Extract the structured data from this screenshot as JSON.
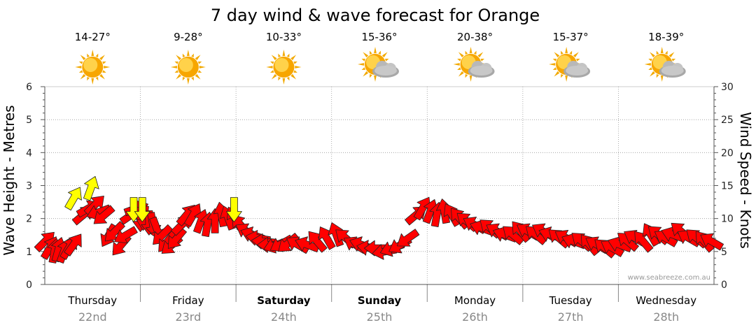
{
  "chart_data": {
    "type": "line",
    "title": "7 day wind & wave forecast for Orange",
    "ylabel_left": "Wave Height - Metres",
    "ylabel_right": "Wind Speed - Knots",
    "ylim_left": [
      0,
      6
    ],
    "ylim_right": [
      0,
      30
    ],
    "yticks_left": [
      "0",
      "1",
      "2",
      "3",
      "4",
      "5",
      "6"
    ],
    "yticks_right": [
      "0",
      "5",
      "10",
      "15",
      "20",
      "25",
      "30"
    ],
    "grid": true,
    "watermark": "www.seabreeze.com.au",
    "days": [
      {
        "day": "Thursday",
        "date": "22nd",
        "temp": "14-27°",
        "weather": "sunny-icon",
        "bold": false
      },
      {
        "day": "Friday",
        "date": "23rd",
        "temp": "9-28°",
        "weather": "sunny-icon",
        "bold": false
      },
      {
        "day": "Saturday",
        "date": "24th",
        "temp": "10-33°",
        "weather": "sunny-icon",
        "bold": true
      },
      {
        "day": "Sunday",
        "date": "25th",
        "temp": "15-36°",
        "weather": "partly-cloudy-icon",
        "bold": true
      },
      {
        "day": "Monday",
        "date": "26th",
        "temp": "20-38°",
        "weather": "partly-cloudy-icon",
        "bold": false
      },
      {
        "day": "Tuesday",
        "date": "27th",
        "temp": "15-37°",
        "weather": "partly-cloudy-icon",
        "bold": false
      },
      {
        "day": "Wednesday",
        "date": "28th",
        "temp": "18-39°",
        "weather": "partly-cloudy-icon",
        "bold": false
      }
    ],
    "colors": {
      "strong": "#ff0000",
      "light": "#ffff00",
      "outline": "#222222",
      "grid": "#999999",
      "date": "#888888"
    },
    "wind_series": {
      "name": "",
      "t": [
        0.0,
        0.05,
        0.1,
        0.14,
        0.2,
        0.25,
        0.3,
        0.4,
        0.45,
        0.52,
        0.57,
        0.62,
        0.67,
        0.73,
        0.8,
        0.85,
        0.9,
        0.95,
        1.0,
        1.04,
        1.09,
        1.13,
        1.17,
        1.23,
        1.28,
        1.33,
        1.38,
        1.43,
        1.48,
        1.55,
        1.63,
        1.7,
        1.78,
        1.85,
        1.92,
        1.99,
        2.05,
        2.12,
        2.18,
        2.24,
        2.3,
        2.36,
        2.42,
        2.48,
        2.55,
        2.65,
        2.75,
        2.85,
        2.95,
        3.05,
        3.15,
        3.25,
        3.32,
        3.4,
        3.48,
        3.56,
        3.64,
        3.72,
        3.8,
        3.88,
        3.95,
        4.03,
        4.1,
        4.18,
        4.26,
        4.34,
        4.42,
        4.5,
        4.58,
        4.66,
        4.74,
        4.82,
        4.9,
        4.98,
        5.06,
        5.14,
        5.22,
        5.3,
        5.38,
        5.46,
        5.54,
        5.62,
        5.7,
        5.78,
        5.86,
        5.94,
        6.02,
        6.1,
        6.18,
        6.26,
        6.34,
        6.42,
        6.5,
        6.58,
        6.66,
        6.74,
        6.82,
        6.9,
        6.98
      ],
      "knots": [
        6.5,
        5.5,
        5.0,
        5.2,
        5.0,
        5.5,
        6.0,
        10.5,
        11.5,
        12.0,
        11.0,
        10.5,
        7.5,
        8.0,
        6.0,
        7.5,
        10.5,
        11.5,
        10.0,
        10.2,
        9.5,
        9.2,
        8.5,
        7.5,
        6.5,
        6.0,
        7.0,
        9.0,
        10.5,
        10.5,
        9.5,
        9.0,
        9.5,
        10.5,
        10.0,
        10.0,
        9.0,
        8.0,
        7.5,
        7.0,
        6.5,
        6.0,
        6.0,
        6.2,
        6.3,
        6.0,
        6.0,
        6.5,
        7.0,
        7.5,
        7.0,
        6.0,
        6.0,
        5.5,
        5.5,
        5.0,
        5.5,
        6.0,
        7.0,
        10.5,
        11.5,
        11.0,
        10.5,
        11.0,
        10.5,
        10.0,
        9.5,
        9.0,
        8.5,
        8.5,
        8.0,
        7.5,
        7.5,
        8.0,
        8.0,
        7.5,
        8.0,
        7.5,
        7.0,
        7.0,
        6.5,
        6.5,
        6.0,
        6.0,
        5.5,
        5.5,
        6.0,
        6.5,
        7.0,
        6.5,
        7.5,
        7.5,
        7.0,
        7.5,
        8.0,
        7.0,
        7.0,
        6.5,
        6.5
      ],
      "direction_deg": [
        45,
        60,
        80,
        75,
        70,
        60,
        55,
        40,
        30,
        45,
        200,
        220,
        240,
        225,
        230,
        210,
        35,
        20,
        270,
        265,
        270,
        280,
        290,
        225,
        230,
        220,
        230,
        45,
        50,
        60,
        70,
        80,
        90,
        100,
        110,
        120,
        130,
        150,
        160,
        170,
        175,
        180,
        200,
        210,
        220,
        150,
        160,
        130,
        120,
        110,
        140,
        150,
        160,
        170,
        180,
        190,
        200,
        210,
        215,
        40,
        60,
        70,
        80,
        100,
        120,
        130,
        140,
        150,
        160,
        140,
        150,
        160,
        140,
        130,
        150,
        140,
        150,
        160,
        140,
        150,
        160,
        140,
        130,
        150,
        140,
        150,
        160,
        140,
        150,
        130,
        120,
        140,
        150,
        160,
        140,
        150,
        140,
        130,
        150
      ]
    },
    "light_wind_arrows": [
      {
        "t": 0.3,
        "knots": 13.0,
        "direction_deg": 60
      },
      {
        "t": 0.48,
        "knots": 14.5,
        "direction_deg": 70
      },
      {
        "t": 0.93,
        "knots": 11.5,
        "direction_deg": 270
      },
      {
        "t": 1.02,
        "knots": 11.5,
        "direction_deg": 270
      },
      {
        "t": 1.98,
        "knots": 11.5,
        "direction_deg": 270
      }
    ]
  }
}
